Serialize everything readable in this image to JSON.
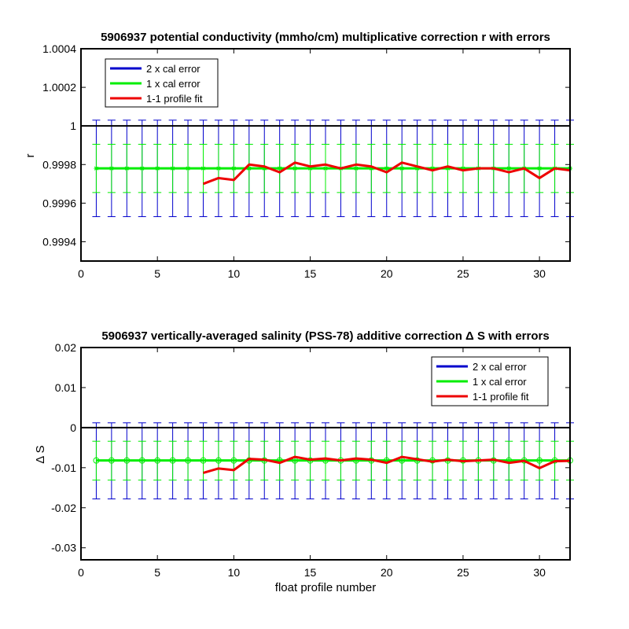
{
  "chart_data": [
    {
      "type": "line",
      "title": "5906937 potential conductivity (mmho/cm) multiplicative correction r with errors",
      "xlabel": "",
      "ylabel": "r",
      "xlim": [
        0,
        32
      ],
      "ylim": [
        0.9993,
        1.0004
      ],
      "xticks": [
        0,
        5,
        10,
        15,
        20,
        25,
        30
      ],
      "xtick_labels": [
        "0",
        "5",
        "10",
        "15",
        "20",
        "25",
        "30"
      ],
      "yticks": [
        0.9994,
        0.9996,
        0.9998,
        1,
        1.0002,
        1.0004
      ],
      "ytick_labels": [
        "0.9994",
        "0.9996",
        "0.9998",
        "1",
        "1.0002",
        "1.0004"
      ],
      "grid": false,
      "legend_position": "top-left",
      "reference_line": 1,
      "marker": "asterisk",
      "series": [
        {
          "name": "2 x cal error",
          "color": "#0000cc",
          "kind": "errorbar",
          "x_start": 1,
          "x_end": 32,
          "center": 0.99978,
          "low": 0.99953,
          "high": 1.00003
        },
        {
          "name": "1 x cal error",
          "color": "#00ee00",
          "kind": "errorbar",
          "x_start": 1,
          "x_end": 32,
          "center": 0.99978,
          "low": 0.999655,
          "high": 0.999905
        },
        {
          "name": "1-1 profile fit",
          "color": "#ee0000",
          "kind": "line",
          "x": [
            8,
            9,
            10,
            11,
            12,
            13,
            14,
            15,
            16,
            17,
            18,
            19,
            20,
            21,
            22,
            23,
            24,
            25,
            26,
            27,
            28,
            29,
            30,
            31,
            32
          ],
          "values": [
            0.9997,
            0.99973,
            0.99972,
            0.9998,
            0.99979,
            0.99976,
            0.99981,
            0.99979,
            0.9998,
            0.99978,
            0.9998,
            0.99979,
            0.99976,
            0.99981,
            0.99979,
            0.99977,
            0.99979,
            0.99977,
            0.99978,
            0.99978,
            0.99976,
            0.99978,
            0.99973,
            0.99978,
            0.99977
          ]
        }
      ]
    },
    {
      "type": "line",
      "title": "5906937 vertically-averaged salinity (PSS-78) additive correction Δ S with errors",
      "xlabel": "float profile number",
      "ylabel": "Δ S",
      "xlim": [
        0,
        32
      ],
      "ylim": [
        -0.033,
        0.02
      ],
      "xticks": [
        0,
        5,
        10,
        15,
        20,
        25,
        30
      ],
      "xtick_labels": [
        "0",
        "5",
        "10",
        "15",
        "20",
        "25",
        "30"
      ],
      "yticks": [
        -0.03,
        -0.02,
        -0.01,
        0,
        0.01,
        0.02
      ],
      "ytick_labels": [
        "-0.03",
        "-0.02",
        "-0.01",
        "0",
        "0.01",
        "0.02"
      ],
      "grid": false,
      "legend_position": "top-right",
      "reference_line": 0,
      "marker": "circle",
      "series": [
        {
          "name": "2 x cal error",
          "color": "#0000cc",
          "kind": "errorbar",
          "x_start": 1,
          "x_end": 32,
          "center": -0.0082,
          "low": -0.0178,
          "high": 0.0012
        },
        {
          "name": "1 x cal error",
          "color": "#00ee00",
          "kind": "errorbar",
          "x_start": 1,
          "x_end": 32,
          "center": -0.0082,
          "low": -0.0131,
          "high": -0.0034
        },
        {
          "name": "1-1 profile fit",
          "color": "#ee0000",
          "kind": "line",
          "x": [
            8,
            9,
            10,
            11,
            12,
            13,
            14,
            15,
            16,
            17,
            18,
            19,
            20,
            21,
            22,
            23,
            24,
            25,
            26,
            27,
            28,
            29,
            30,
            31,
            32
          ],
          "values": [
            -0.0113,
            -0.0102,
            -0.0106,
            -0.0078,
            -0.008,
            -0.0088,
            -0.0073,
            -0.008,
            -0.0077,
            -0.0082,
            -0.0077,
            -0.008,
            -0.0088,
            -0.0073,
            -0.0079,
            -0.0085,
            -0.008,
            -0.0084,
            -0.0082,
            -0.008,
            -0.0088,
            -0.0083,
            -0.0101,
            -0.0084,
            -0.0083
          ]
        }
      ]
    }
  ]
}
